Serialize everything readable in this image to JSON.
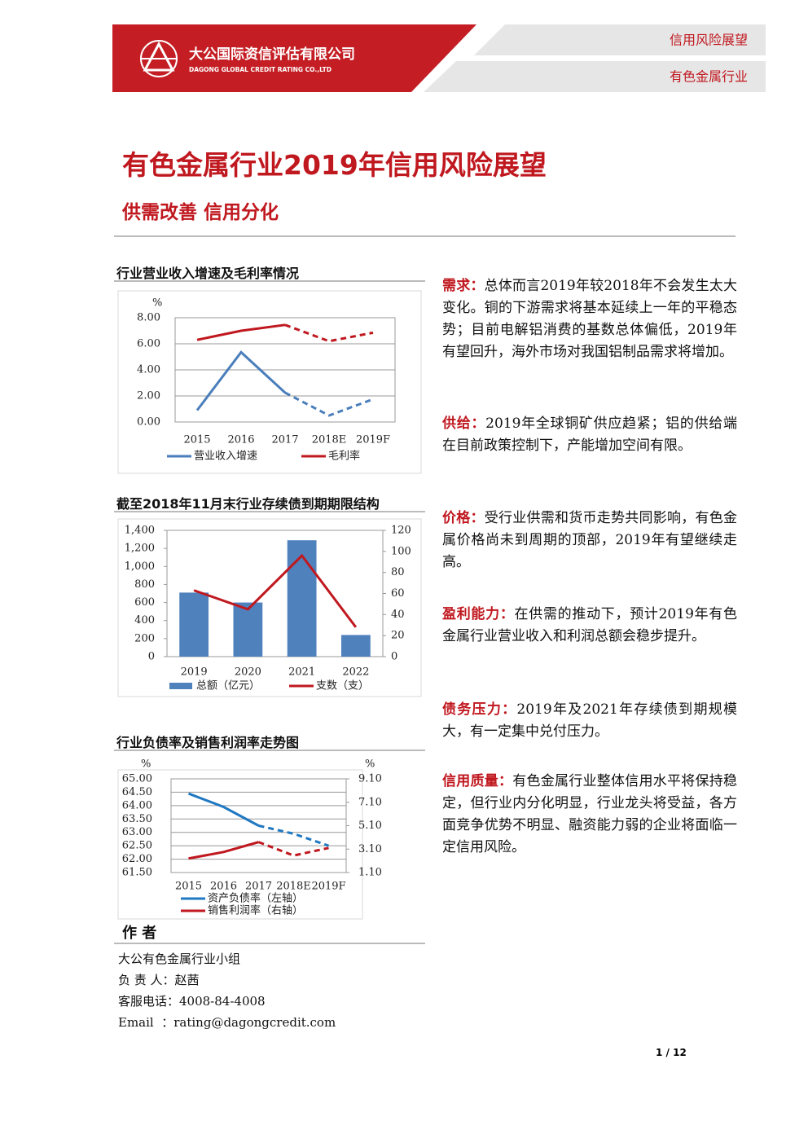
{
  "header": {
    "company_cn": "大公国际资信评估有限公司",
    "company_en": "DAGONG GLOBAL CREDIT RATING CO.,LTD",
    "tag1": "信用风险展望",
    "tag2": "有色金属行业"
  },
  "title": "有色金属行业2019年信用风险展望",
  "subtitle": "供需改善 信用分化",
  "chart_data": [
    {
      "type": "line",
      "title": "行业营业收入增速及毛利率情况",
      "y_unit": "%",
      "categories": [
        "2015",
        "2016",
        "2017",
        "2018E",
        "2019F"
      ],
      "ylim": [
        0,
        8
      ],
      "yticks": [
        {
          "value": 0,
          "label": "0.00"
        },
        {
          "value": 2,
          "label": "2.00"
        },
        {
          "value": 4,
          "label": "4.00"
        },
        {
          "value": 6,
          "label": "6.00"
        },
        {
          "value": 8,
          "label": "8.00"
        }
      ],
      "grid": true,
      "series": [
        {
          "name": "营业收入增速",
          "color": "#4a7ebb",
          "dashed_from": 2,
          "values": [
            0.9,
            5.35,
            2.25,
            0.5,
            1.75
          ]
        },
        {
          "name": "毛利率",
          "color": "#c0181f",
          "dashed_from": 2,
          "values": [
            6.3,
            7.0,
            7.45,
            6.2,
            6.85
          ]
        }
      ]
    },
    {
      "type": "bar",
      "title": "截至2018年11月末行业存续债到期期限结构",
      "categories": [
        "2019",
        "2020",
        "2021",
        "2022"
      ],
      "ylim": [
        0,
        1400
      ],
      "yticks": [
        0,
        200,
        400,
        600,
        800,
        {
          "value": 1000,
          "label": "1,000"
        },
        {
          "value": 1200,
          "label": "1,200"
        },
        {
          "value": 1400,
          "label": "1,400"
        }
      ],
      "y2lim": [
        0,
        120
      ],
      "y2ticks": [
        0,
        20,
        40,
        60,
        80,
        100,
        120
      ],
      "grid": false,
      "series": [
        {
          "name": "总额（亿元）",
          "color": "#4f81bd",
          "values": [
            710,
            600,
            1290,
            240
          ]
        },
        {
          "name": "支数（支）",
          "type": "line",
          "axis": "y2",
          "color": "#c0181f",
          "values": [
            63,
            45,
            96,
            28
          ]
        }
      ]
    },
    {
      "type": "line",
      "title": "行业负债率及销售利润率走势图",
      "y_unit": "%",
      "y2_unit": "%",
      "categories": [
        "2015",
        "2016",
        "2017",
        "2018E",
        "2019F"
      ],
      "ylim": [
        61.5,
        65
      ],
      "yticks": [
        {
          "value": 61.5,
          "label": "61.50"
        },
        {
          "value": 62,
          "label": "62.00"
        },
        {
          "value": 62.5,
          "label": "62.50"
        },
        {
          "value": 63,
          "label": "63.00"
        },
        {
          "value": 63.5,
          "label": "63.50"
        },
        {
          "value": 64,
          "label": "64.00"
        },
        {
          "value": 64.5,
          "label": "64.50"
        },
        {
          "value": 65,
          "label": "65.00"
        }
      ],
      "y2lim": [
        1.1,
        9.1
      ],
      "y2ticks": [
        {
          "value": 1.1,
          "label": "1.10"
        },
        {
          "value": 3.1,
          "label": "3.10"
        },
        {
          "value": 5.1,
          "label": "5.10"
        },
        {
          "value": 7.1,
          "label": "7.10"
        },
        {
          "value": 9.1,
          "label": "9.10"
        }
      ],
      "grid": true,
      "legend_stacked": true,
      "series": [
        {
          "name": "资产负债率（左轴）",
          "color": "#1f78c1",
          "dashed_from": 2,
          "values": [
            64.45,
            63.95,
            63.25,
            62.95,
            62.5
          ]
        },
        {
          "name": "销售利润率（右轴）",
          "color": "#c0181f",
          "axis": "y2",
          "dashed_from": 2,
          "values": [
            2.3,
            2.85,
            3.7,
            2.55,
            3.2
          ]
        }
      ]
    }
  ],
  "sections": [
    {
      "label": "需求：",
      "text": "总体而言2019年较2018年不会发生太大变化。铜的下游需求将基本延续上一年的平稳态势；目前电解铝消费的基数总体偏低，2019年有望回升，海外市场对我国铝制品需求将增加。"
    },
    {
      "label": "供给：",
      "text": "2019年全球铜矿供应趋紧；铝的供给端在目前政策控制下，产能增加空间有限。"
    },
    {
      "label": "价格：",
      "text": "受行业供需和货币走势共同影响，有色金属价格尚未到周期的顶部，2019年有望继续走高。"
    },
    {
      "label": "盈利能力：",
      "text": "在供需的推动下，预计2019年有色金属行业营业收入和利润总额会稳步提升。"
    },
    {
      "label": "债务压力：",
      "text": "2019年及2021年存续债到期规模大，有一定集中兑付压力。"
    },
    {
      "label": "信用质量：",
      "text": "有色金属行业整体信用水平将保持稳定，但行业内分化明显，行业龙头将受益，各方面竞争优势不明显、融资能力弱的企业将面临一定信用风险。"
    }
  ],
  "author": {
    "heading": "作 者",
    "lines": [
      "大公有色金属行业小组",
      "负 责 人：赵茜",
      "客服电话：4008-84-4008",
      "Email  ：rating@dagongcredit.com"
    ]
  },
  "page_number": "1 / 12"
}
